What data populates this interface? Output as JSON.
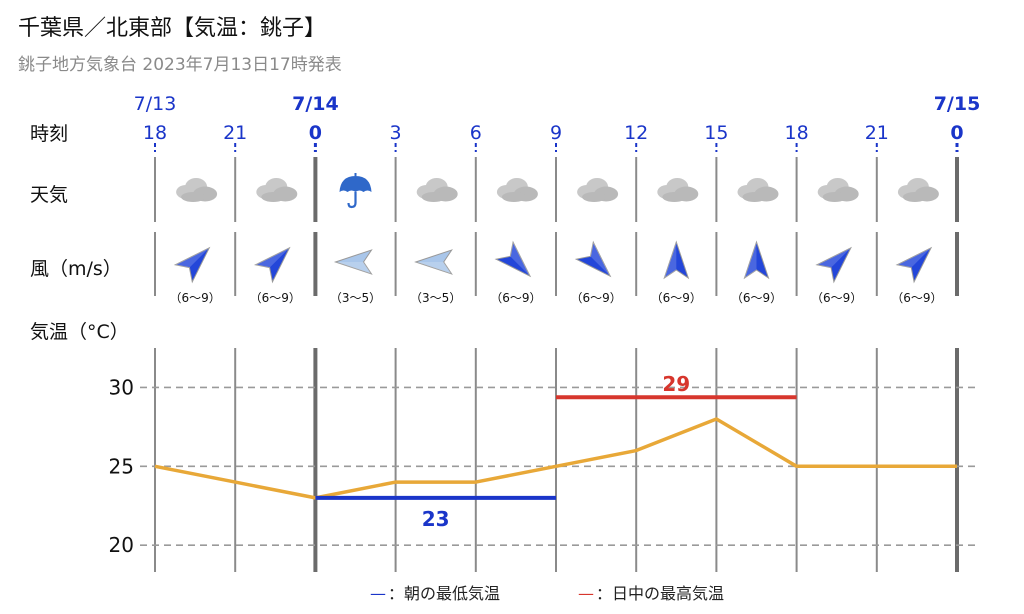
{
  "header": {
    "title": "千葉県／北東部【気温：銚子】",
    "subtitle": "銚子地方気象台 2023年7月13日17時発表"
  },
  "rows": {
    "time_label": "時刻",
    "weather_label": "天気",
    "wind_label": "風（m/s）",
    "temp_label": "気温（°C）"
  },
  "dates": [
    "7/13",
    "7/14",
    "7/15"
  ],
  "hours": [
    "18",
    "21",
    "0",
    "3",
    "6",
    "9",
    "12",
    "15",
    "18",
    "21",
    "0"
  ],
  "weather": [
    "cloudy-icon",
    "cloudy-icon",
    "umbrella-icon",
    "cloudy-icon",
    "cloudy-icon",
    "cloudy-icon",
    "cloudy-icon",
    "cloudy-icon",
    "cloudy-icon",
    "cloudy-icon"
  ],
  "wind": [
    {
      "dir": "NE",
      "speed": "（6〜9）",
      "strength": "strong"
    },
    {
      "dir": "NE",
      "speed": "（6〜9）",
      "strength": "strong"
    },
    {
      "dir": "E",
      "speed": "（3〜5）",
      "strength": "weak"
    },
    {
      "dir": "E",
      "speed": "（3〜5）",
      "strength": "weak"
    },
    {
      "dir": "NW",
      "speed": "（6〜9）",
      "strength": "strong"
    },
    {
      "dir": "NW",
      "speed": "（6〜9）",
      "strength": "strong"
    },
    {
      "dir": "N",
      "speed": "（6〜9）",
      "strength": "strong"
    },
    {
      "dir": "N",
      "speed": "（6〜9）",
      "strength": "strong"
    },
    {
      "dir": "NE",
      "speed": "（6〜9）",
      "strength": "strong"
    },
    {
      "dir": "NE",
      "speed": "（6〜9）",
      "strength": "strong"
    }
  ],
  "colors": {
    "date": "#1a35c9",
    "temp_line": "#e8a838",
    "min_temp": "#1a35c9",
    "max_temp": "#d7362d",
    "wind_strong": "#2346d9",
    "wind_weak": "#a9c6ea",
    "grid": "#8a8a8a"
  },
  "chart_data": {
    "type": "line",
    "x": [
      "18",
      "21",
      "0",
      "3",
      "6",
      "9",
      "12",
      "15",
      "18",
      "21",
      "0"
    ],
    "series": [
      {
        "values": [
          25,
          24,
          23,
          24,
          24,
          25,
          26,
          28,
          25,
          25,
          25
        ]
      }
    ],
    "ylim": [
      18.3,
      32.5
    ],
    "yticks": [
      20,
      25,
      30
    ],
    "min_temp": {
      "value": 23,
      "label": "23",
      "x_range": [
        "0",
        "9"
      ]
    },
    "max_temp": {
      "value": 29,
      "label": "29",
      "x_range": [
        "9",
        "18"
      ]
    },
    "grid": true,
    "legend": [
      {
        "mark": "—",
        "label": "：朝の最低気温"
      },
      {
        "mark": "—",
        "label": "：日中の最高気温"
      }
    ]
  }
}
